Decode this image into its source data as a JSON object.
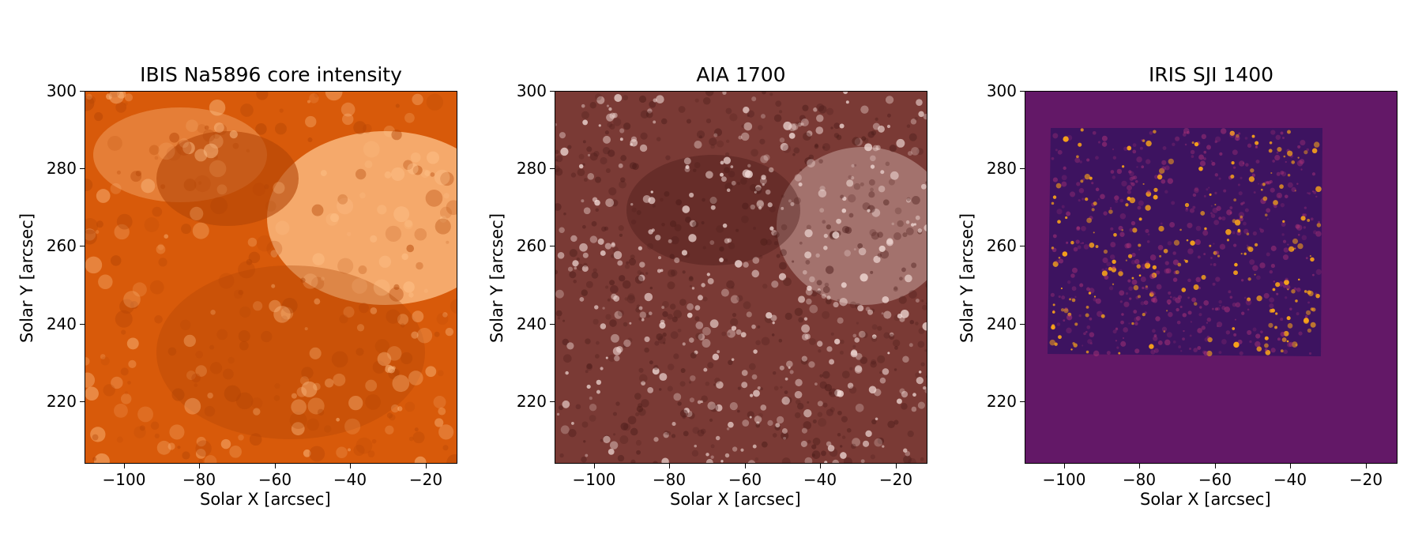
{
  "panels": [
    {
      "title": "IBIS Na5896 core intensity",
      "xlabel": "Solar X [arcsec]",
      "ylabel": "Solar Y [arcsec]",
      "colormap": "orange-hot",
      "x_ticks": [
        "−100",
        "−80",
        "−60",
        "−40",
        "−20"
      ],
      "y_ticks": [
        "300",
        "280",
        "260",
        "240",
        "220"
      ]
    },
    {
      "title": "AIA 1700",
      "xlabel": "Solar X [arcsec]",
      "ylabel": "Solar Y [arcsec]",
      "colormap": "sdo-aia-1700",
      "x_ticks": [
        "−100",
        "−80",
        "−60",
        "−40",
        "−20"
      ],
      "y_ticks": [
        "300",
        "280",
        "260",
        "240",
        "220"
      ]
    },
    {
      "title": "IRIS SJI 1400",
      "xlabel": "Solar X [arcsec]",
      "ylabel": "Solar Y [arcsec]",
      "colormap": "inferno",
      "x_ticks": [
        "−100",
        "−80",
        "−60",
        "−40",
        "−20"
      ],
      "y_ticks": [
        "300",
        "280",
        "260",
        "240",
        "220"
      ]
    }
  ],
  "colors": {
    "ibis_base": "#d85a0a",
    "ibis_bright": "#ffc48c",
    "ibis_dark": "#b34405",
    "aia_base": "#7a3a35",
    "aia_bright": "#f2dcd8",
    "aia_dark": "#4a1b18",
    "iris_background": "#631867",
    "iris_base": "#3d1360",
    "iris_bright": "#f7a21a",
    "iris_mid": "#b5367a"
  }
}
